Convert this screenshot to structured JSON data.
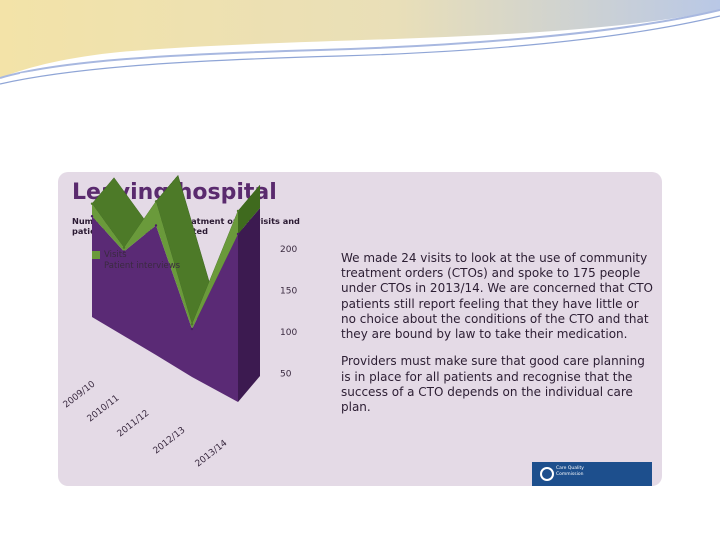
{
  "title": "Leaving hospital",
  "chart_data": {
    "type": "area",
    "title": "Number of community treatment order visits and patient interviews completed",
    "categories": [
      "2009/10",
      "2010/11",
      "2011/12",
      "2012/13",
      "2013/14"
    ],
    "series": [
      {
        "name": "Visits",
        "values": [
          13,
          4,
          25,
          5,
          24
        ]
      },
      {
        "name": "Patient interviews",
        "values": [
          105,
          88,
          135,
          50,
          175
        ]
      }
    ],
    "y_ticks": [
      "50",
      "100",
      "150",
      "200"
    ],
    "ylim": [
      0,
      200
    ],
    "legend_position": "top-left",
    "colors": {
      "visits": "#6a9a3b",
      "patient_interviews": "#5a2a75"
    }
  },
  "body_text": [
    "We made 24 visits to look at the use of community treatment orders (CTOs) and spoke to 175 people under CTOs in 2013/14. We are concerned that CTO patients still report feeling that they have little or no choice about the conditions of the CTO and that they are bound by law to take their medication.",
    "Providers must make sure that good care planning is in place for all patients and recognise that the success of a CTO depends on the individual care plan."
  ],
  "logo": {
    "text": "Care Quality Commission"
  }
}
